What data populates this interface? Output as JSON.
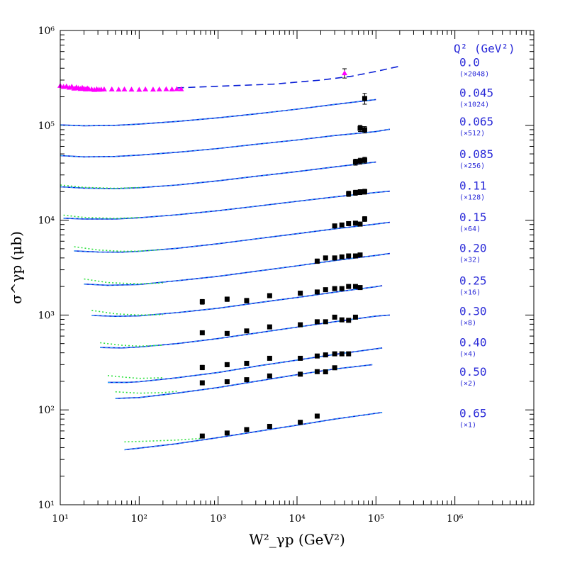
{
  "chart_data": {
    "type": "line",
    "xlabel": "W²_γp (GeV²)",
    "ylabel": "σ^γp (μb)",
    "xscale": "log",
    "yscale": "log",
    "xlim": [
      10,
      10000000
    ],
    "ylim": [
      10,
      1000000
    ],
    "x_tick_labels": [
      "10¹",
      "10²",
      "10³",
      "10⁴",
      "10⁵",
      "10⁶"
    ],
    "y_tick_labels": [
      "10¹",
      "10²",
      "10³",
      "10⁴",
      "10⁵",
      "10⁶"
    ],
    "legend_header": "Q² (GeV²)",
    "series_labels": [
      {
        "q2": "0.0",
        "scale": "(×2048)",
        "ylab": 420000
      },
      {
        "q2": "0.045",
        "scale": "(×1024)",
        "ylab": 200000
      },
      {
        "q2": "0.065",
        "scale": "(×512)",
        "ylab": 100000
      },
      {
        "q2": "0.085",
        "scale": "(×256)",
        "ylab": 45000
      },
      {
        "q2": "0.11",
        "scale": "(×128)",
        "ylab": 21000
      },
      {
        "q2": "0.15",
        "scale": "(×64)",
        "ylab": 9800
      },
      {
        "q2": "0.20",
        "scale": "(×32)",
        "ylab": 4600
      },
      {
        "q2": "0.25",
        "scale": "(×16)",
        "ylab": 2100
      },
      {
        "q2": "0.30",
        "scale": "(×8)",
        "ylab": 1000
      },
      {
        "q2": "0.40",
        "scale": "(×4)",
        "ylab": 470
      },
      {
        "q2": "0.50",
        "scale": "(×2)",
        "ylab": 230
      },
      {
        "q2": "0.65",
        "scale": "(×1)",
        "ylab": 84
      }
    ],
    "series": [
      {
        "q2": "0.0",
        "model_dashed": {
          "x": [
            300,
            1000,
            5000,
            20000,
            50000,
            100000,
            200000
          ],
          "y": [
            248000,
            258000,
            272000,
            300000,
            330000,
            370000,
            420000
          ]
        },
        "photoproduction_triangles": {
          "x": [
            10,
            11,
            12,
            13,
            14,
            15,
            16,
            17,
            18,
            19,
            20,
            21,
            22,
            23,
            25,
            27,
            29,
            31,
            33,
            36,
            45,
            55,
            65,
            80,
            100,
            120,
            150,
            180,
            220,
            260,
            300,
            340
          ],
          "y": [
            262000,
            255000,
            258000,
            250000,
            256000,
            245000,
            252000,
            247000,
            243000,
            249000,
            244000,
            240000,
            246000,
            242000,
            240000,
            237000,
            241000,
            238000,
            239000,
            240000,
            240000,
            239000,
            240000,
            239000,
            238000,
            240000,
            239000,
            240000,
            241000,
            240000,
            242000,
            241000
          ]
        },
        "points": {
          "x": [
            40000
          ],
          "y": [
            355000
          ],
          "err": [
            40000
          ]
        }
      },
      {
        "q2": "0.045",
        "line": {
          "x": [
            10,
            20,
            50,
            100,
            300,
            1000,
            3000,
            10000,
            30000,
            100000
          ],
          "y": [
            101000,
            99000,
            100000,
            103000,
            110000,
            120000,
            132000,
            148000,
            166000,
            187000
          ]
        },
        "points": {
          "x": [
            72000
          ],
          "y": [
            192000
          ],
          "err": [
            25000
          ]
        }
      },
      {
        "q2": "0.065",
        "line": {
          "x": [
            10,
            20,
            50,
            100,
            300,
            1000,
            3000,
            10000,
            30000,
            100000,
            150000
          ],
          "y": [
            48000,
            46500,
            47000,
            48500,
            52000,
            57000,
            63000,
            70000,
            78000,
            86000,
            91000
          ]
        },
        "points": {
          "x": [
            63000,
            72000
          ],
          "y": [
            93000,
            90000
          ],
          "err": [
            7000,
            7000
          ]
        }
      },
      {
        "q2": "0.085",
        "line": {
          "x": [
            10,
            20,
            50,
            100,
            300,
            1000,
            3000,
            10000,
            30000,
            100000
          ],
          "y": [
            22500,
            21800,
            21500,
            22000,
            23500,
            26000,
            29000,
            32500,
            36500,
            41000
          ]
        },
        "dotted": {
          "x": [
            10,
            20,
            50,
            100
          ],
          "y": [
            23500,
            22200,
            21700,
            22100
          ]
        },
        "points": {
          "x": [
            55000,
            63000,
            72000
          ],
          "y": [
            41000,
            42000,
            43000
          ],
          "err": [
            3000,
            3000,
            3000
          ]
        }
      },
      {
        "q2": "0.11",
        "line": {
          "x": [
            11,
            20,
            50,
            100,
            300,
            1000,
            3000,
            10000,
            30000,
            100000,
            150000
          ],
          "y": [
            10500,
            10300,
            10300,
            10600,
            11400,
            12600,
            14000,
            15800,
            17600,
            19600,
            20200
          ]
        },
        "dotted": {
          "x": [
            11,
            20,
            50,
            100
          ],
          "y": [
            11300,
            10700,
            10450,
            10650
          ]
        },
        "points": {
          "x": [
            45000,
            55000,
            63000,
            72000
          ],
          "y": [
            19000,
            19500,
            19800,
            20000
          ],
          "err": [
            1200,
            1200,
            1200,
            1200
          ]
        }
      },
      {
        "q2": "0.15",
        "line": {
          "x": [
            15,
            30,
            60,
            100,
            300,
            1000,
            3000,
            10000,
            30000,
            100000,
            150000
          ],
          "y": [
            4750,
            4620,
            4600,
            4700,
            5050,
            5650,
            6350,
            7200,
            8100,
            9100,
            9500
          ]
        },
        "dotted": {
          "x": [
            15,
            30,
            60,
            100,
            200
          ],
          "y": [
            5250,
            4850,
            4700,
            4720,
            4900
          ]
        },
        "points": {
          "x": [
            30000,
            37000,
            45000,
            55000,
            63000,
            72000
          ],
          "y": [
            8700,
            8900,
            9200,
            9300,
            9100,
            10300
          ],
          "err": [
            400,
            400,
            400,
            400,
            400,
            600
          ]
        }
      },
      {
        "q2": "0.20",
        "line": {
          "x": [
            20,
            40,
            100,
            300,
            1000,
            3000,
            10000,
            30000,
            100000,
            150000
          ],
          "y": [
            2120,
            2060,
            2100,
            2300,
            2560,
            2890,
            3300,
            3750,
            4250,
            4450
          ]
        },
        "dotted": {
          "x": [
            20,
            40,
            100,
            200
          ],
          "y": [
            2400,
            2200,
            2130,
            2180
          ]
        },
        "points": {
          "x": [
            18000,
            23000,
            30000,
            37000,
            45000,
            55000,
            63000
          ],
          "y": [
            3700,
            4000,
            4000,
            4100,
            4200,
            4200,
            4300
          ],
          "err": [
            200,
            200,
            200,
            200,
            200,
            200,
            200
          ]
        }
      },
      {
        "q2": "0.25",
        "line": {
          "x": [
            25,
            50,
            100,
            300,
            1000,
            3000,
            10000,
            30000,
            100000,
            120000
          ],
          "y": [
            990,
            970,
            980,
            1060,
            1180,
            1340,
            1530,
            1740,
            1990,
            2040
          ]
        },
        "dotted": {
          "x": [
            25,
            50,
            100,
            200
          ],
          "y": [
            1120,
            1030,
            1000,
            1010
          ]
        },
        "points": {
          "x": [
            630,
            1300,
            2300,
            4500,
            11000,
            18000,
            23000,
            30000,
            37000,
            45000,
            55000,
            63000
          ],
          "y": [
            1380,
            1470,
            1420,
            1600,
            1700,
            1750,
            1850,
            1900,
            1900,
            2000,
            2000,
            1950
          ],
          "err": [
            80,
            80,
            80,
            80,
            80,
            80,
            80,
            80,
            80,
            80,
            80,
            80
          ]
        }
      },
      {
        "q2": "0.30",
        "line": {
          "x": [
            32,
            60,
            100,
            300,
            1000,
            3000,
            10000,
            30000,
            100000,
            150000
          ],
          "y": [
            455,
            450,
            460,
            500,
            565,
            645,
            745,
            850,
            975,
            1000
          ]
        },
        "dotted": {
          "x": [
            32,
            60,
            100,
            200
          ],
          "y": [
            510,
            480,
            470,
            480
          ]
        },
        "points": {
          "x": [
            630,
            1300,
            2300,
            4500,
            11000,
            18000,
            23000,
            30000,
            37000,
            45000,
            55000
          ],
          "y": [
            650,
            640,
            680,
            750,
            790,
            850,
            850,
            950,
            890,
            880,
            950
          ],
          "err": [
            30,
            30,
            30,
            30,
            30,
            30,
            30,
            30,
            30,
            30,
            30
          ]
        }
      },
      {
        "q2": "0.40",
        "line": {
          "x": [
            40,
            70,
            100,
            300,
            1000,
            3000,
            10000,
            30000,
            100000,
            120000
          ],
          "y": [
            195,
            195,
            198,
            218,
            248,
            288,
            335,
            385,
            440,
            450
          ]
        },
        "dotted": {
          "x": [
            40,
            70,
            100,
            200
          ],
          "y": [
            230,
            220,
            215,
            218
          ]
        },
        "points": {
          "x": [
            630,
            1300,
            2300,
            4500,
            11000,
            18000,
            23000,
            30000,
            37000,
            45000
          ],
          "y": [
            280,
            300,
            310,
            350,
            350,
            370,
            380,
            390,
            390,
            390
          ],
          "err": [
            15,
            15,
            15,
            15,
            15,
            15,
            15,
            15,
            15,
            15
          ]
        }
      },
      {
        "q2": "0.50",
        "line": {
          "x": [
            50,
            100,
            300,
            1000,
            3000,
            10000,
            30000,
            90000
          ],
          "y": [
            132,
            135,
            150,
            172,
            200,
            235,
            270,
            300
          ]
        },
        "dotted": {
          "x": [
            50,
            100,
            200,
            300
          ],
          "y": [
            155,
            150,
            152,
            157
          ]
        },
        "points": {
          "x": [
            630,
            1300,
            2300,
            4500,
            11000,
            18000,
            23000,
            30000
          ],
          "y": [
            193,
            198,
            208,
            228,
            238,
            253,
            252,
            278
          ],
          "err": [
            10,
            10,
            10,
            10,
            10,
            10,
            10,
            10
          ]
        }
      },
      {
        "q2": "0.65",
        "line": {
          "x": [
            65,
            100,
            300,
            1000,
            3000,
            10000,
            30000,
            100000,
            120000
          ],
          "y": [
            38,
            39.5,
            44,
            51,
            59,
            69,
            80,
            92,
            94
          ]
        },
        "dotted": {
          "x": [
            65,
            100,
            300,
            600
          ],
          "y": [
            46,
            46.5,
            48,
            50
          ]
        },
        "points": {
          "x": [
            630,
            1300,
            2300,
            4500,
            11000,
            18000
          ],
          "y": [
            53,
            57,
            62,
            67,
            74,
            86
          ],
          "err": [
            2,
            2,
            2,
            2,
            2,
            3
          ]
        }
      }
    ],
    "colors": {
      "axis": "#000000",
      "line": "#0a1fd6",
      "dash_overlay": "#2fb6ff",
      "dotted": "#2fe13f",
      "points": "#000000",
      "triangles": "#ff00ff",
      "label": "#2a2ad8"
    }
  }
}
